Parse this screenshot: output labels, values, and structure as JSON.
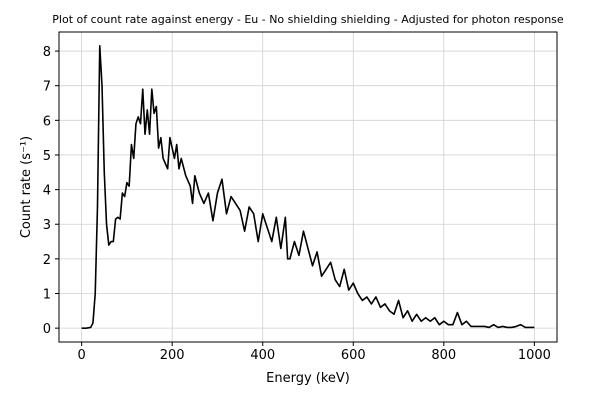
{
  "chart_data": {
    "type": "line",
    "title": "Plot of count rate against energy - Eu - No shielding shielding - Adjusted for photon response",
    "x_label": "Energy (keV)",
    "y_label": "Count rate (s⁻¹)",
    "x": [
      0,
      10,
      20,
      25,
      30,
      35,
      40,
      45,
      50,
      55,
      60,
      65,
      70,
      75,
      80,
      85,
      90,
      95,
      100,
      105,
      110,
      115,
      120,
      125,
      130,
      135,
      140,
      145,
      150,
      155,
      160,
      165,
      170,
      175,
      180,
      190,
      195,
      200,
      205,
      210,
      215,
      220,
      230,
      240,
      245,
      250,
      260,
      270,
      280,
      290,
      300,
      310,
      320,
      330,
      340,
      350,
      360,
      370,
      380,
      390,
      400,
      410,
      420,
      430,
      440,
      450,
      455,
      460,
      470,
      480,
      490,
      500,
      510,
      520,
      530,
      540,
      550,
      560,
      570,
      580,
      590,
      600,
      610,
      620,
      630,
      640,
      650,
      660,
      670,
      680,
      690,
      700,
      710,
      720,
      730,
      740,
      750,
      760,
      770,
      780,
      790,
      800,
      810,
      820,
      830,
      840,
      850,
      860,
      870,
      880,
      890,
      900,
      910,
      920,
      930,
      940,
      950,
      960,
      970,
      980,
      990,
      1000
    ],
    "series": [
      {
        "color": "#000000",
        "values": [
          0,
          0,
          0.02,
          0.15,
          1.0,
          3.5,
          8.15,
          7.0,
          4.5,
          3.0,
          2.4,
          2.5,
          2.5,
          3.15,
          3.2,
          3.15,
          3.9,
          3.8,
          4.2,
          4.1,
          5.3,
          4.9,
          5.9,
          6.1,
          5.9,
          6.9,
          5.6,
          6.3,
          5.6,
          6.9,
          6.2,
          6.4,
          5.2,
          5.5,
          4.9,
          4.6,
          5.5,
          5.2,
          4.9,
          5.3,
          4.6,
          4.9,
          4.4,
          4.1,
          3.6,
          4.4,
          3.9,
          3.6,
          3.9,
          3.1,
          3.9,
          4.3,
          3.3,
          3.8,
          3.6,
          3.4,
          2.8,
          3.5,
          3.3,
          2.5,
          3.3,
          2.9,
          2.5,
          3.2,
          2.3,
          3.2,
          2.0,
          2.0,
          2.5,
          2.1,
          2.8,
          2.3,
          1.8,
          2.2,
          1.5,
          1.7,
          1.9,
          1.4,
          1.2,
          1.7,
          1.1,
          1.3,
          1.0,
          0.8,
          0.9,
          0.7,
          0.9,
          0.6,
          0.7,
          0.5,
          0.4,
          0.8,
          0.3,
          0.5,
          0.2,
          0.4,
          0.2,
          0.3,
          0.2,
          0.3,
          0.1,
          0.2,
          0.1,
          0.1,
          0.45,
          0.1,
          0.2,
          0.05,
          0.05,
          0.05,
          0.05,
          0.02,
          0.1,
          0.02,
          0.05,
          0.02,
          0.02,
          0.05,
          0.1,
          0.02,
          0.02,
          0.02
        ]
      }
    ],
    "xlim": [
      -50,
      1050
    ],
    "ylim": [
      -0.4,
      8.55
    ],
    "xticks": [
      0,
      200,
      400,
      600,
      800,
      1000
    ],
    "yticks": [
      0,
      1,
      2,
      3,
      4,
      5,
      6,
      7,
      8
    ],
    "grid": true
  }
}
